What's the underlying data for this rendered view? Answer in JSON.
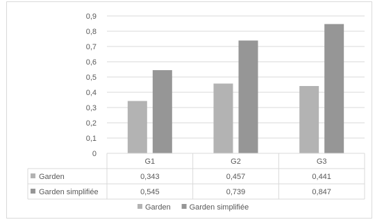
{
  "chart_data": {
    "type": "bar",
    "categories": [
      "G1",
      "G2",
      "G3"
    ],
    "series": [
      {
        "name": "Garden",
        "values": [
          0.343,
          0.457,
          0.441
        ],
        "labels": [
          "0,343",
          "0,457",
          "0,441"
        ],
        "color": "#b3b3b3"
      },
      {
        "name": "Garden simplifiée",
        "values": [
          0.545,
          0.739,
          0.847
        ],
        "labels": [
          "0,545",
          "0,739",
          "0,847"
        ],
        "color": "#969696"
      }
    ],
    "yticks": [
      "0",
      "0,1",
      "0,2",
      "0,3",
      "0,4",
      "0,5",
      "0,6",
      "0,7",
      "0,8",
      "0,9"
    ],
    "ylim": [
      0,
      0.9
    ],
    "grid": true,
    "data_table": true,
    "legend_position": "bottom",
    "title": "",
    "xlabel": "",
    "ylabel": ""
  }
}
